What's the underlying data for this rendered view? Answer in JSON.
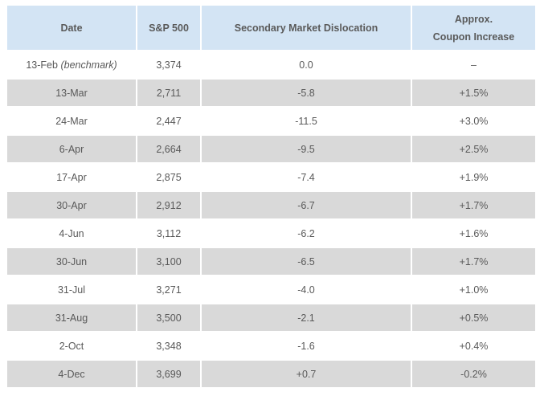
{
  "table": {
    "headers": {
      "date": "Date",
      "sp500": "S&P 500",
      "dislocation": "Secondary Market Dislocation",
      "coupon_line1": "Approx.",
      "coupon_line2": "Coupon Increase"
    },
    "rows": [
      {
        "date": "13-Feb",
        "date_note": "(benchmark)",
        "sp500": "3,374",
        "dislocation": "0.0",
        "coupon": "–"
      },
      {
        "date": "13-Mar",
        "date_note": "",
        "sp500": "2,711",
        "dislocation": "-5.8",
        "coupon": "+1.5%"
      },
      {
        "date": "24-Mar",
        "date_note": "",
        "sp500": "2,447",
        "dislocation": "-11.5",
        "coupon": "+3.0%"
      },
      {
        "date": "6-Apr",
        "date_note": "",
        "sp500": "2,664",
        "dislocation": "-9.5",
        "coupon": "+2.5%"
      },
      {
        "date": "17-Apr",
        "date_note": "",
        "sp500": "2,875",
        "dislocation": "-7.4",
        "coupon": "+1.9%"
      },
      {
        "date": "30-Apr",
        "date_note": "",
        "sp500": "2,912",
        "dislocation": "-6.7",
        "coupon": "+1.7%"
      },
      {
        "date": "4-Jun",
        "date_note": "",
        "sp500": "3,112",
        "dislocation": "-6.2",
        "coupon": "+1.6%"
      },
      {
        "date": "30-Jun",
        "date_note": "",
        "sp500": "3,100",
        "dislocation": "-6.5",
        "coupon": "+1.7%"
      },
      {
        "date": "31-Jul",
        "date_note": "",
        "sp500": "3,271",
        "dislocation": "-4.0",
        "coupon": "+1.0%"
      },
      {
        "date": "31-Aug",
        "date_note": "",
        "sp500": "3,500",
        "dislocation": "-2.1",
        "coupon": "+0.5%"
      },
      {
        "date": "2-Oct",
        "date_note": "",
        "sp500": "3,348",
        "dislocation": "-1.6",
        "coupon": "+0.4%"
      },
      {
        "date": "4-Dec",
        "date_note": "",
        "sp500": "3,699",
        "dislocation": "+0.7",
        "coupon": "-0.2%"
      }
    ]
  },
  "colors": {
    "header_bg": "#d3e4f4",
    "shaded_row_bg": "#d9d9d9",
    "text": "#595959"
  }
}
